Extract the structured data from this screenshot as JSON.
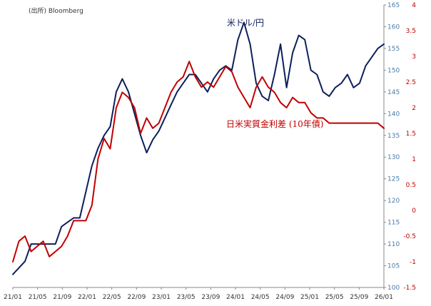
{
  "chart_data": {
    "type": "line",
    "source": "(出所) Bloomberg",
    "xlabel": "",
    "x_ticks": [
      "21/01",
      "21/05",
      "21/09",
      "22/01",
      "22/05",
      "22/09",
      "23/01",
      "23/05",
      "23/09",
      "24/01",
      "24/05",
      "24/09",
      "25/01",
      "25/05",
      "25/09",
      "26/01"
    ],
    "x_range": [
      0,
      61
    ],
    "y_left": {
      "range": [
        100,
        165
      ],
      "ticks": [
        100,
        105,
        110,
        115,
        120,
        125,
        130,
        135,
        140,
        145,
        150,
        155,
        160,
        165
      ],
      "color": "#4a7aa8"
    },
    "y_right": {
      "range": [
        -1.5,
        4
      ],
      "ticks": [
        "-1.5",
        "-1",
        "-0.5",
        "0",
        "0.5",
        "1",
        "1.5",
        "2",
        "2.5",
        "3",
        "3.5",
        "4"
      ],
      "color": "#c00000"
    },
    "grid": false,
    "series": [
      {
        "name": "米ドル/円",
        "axis": "left",
        "color": "#0d1f5c",
        "x": [
          0,
          2,
          3,
          4,
          5,
          6,
          7,
          8,
          9,
          10,
          11,
          12,
          13,
          14,
          15,
          16,
          17,
          18,
          19,
          20,
          21,
          22,
          23,
          24,
          25,
          26,
          27,
          28,
          29,
          30,
          31,
          32,
          33,
          34,
          35,
          36,
          37,
          38,
          39,
          40,
          41,
          42,
          43,
          44,
          45,
          46,
          47,
          48,
          49,
          50,
          51,
          52,
          53,
          54,
          55,
          56,
          57,
          58,
          59,
          60,
          61
        ],
        "values": [
          103.0,
          106.0,
          110.0,
          110.0,
          110.0,
          110.0,
          110.0,
          114.0,
          115.0,
          116.0,
          116.0,
          122.0,
          128.0,
          132.0,
          135.0,
          137.0,
          145.0,
          148.0,
          145.0,
          140.0,
          135.0,
          131.0,
          134.0,
          136.0,
          139.0,
          142.0,
          145.0,
          147.0,
          149.0,
          149.0,
          147.0,
          145.0,
          148.0,
          150.0,
          151.0,
          150.0,
          157.0,
          161.0,
          156.0,
          147.0,
          144.0,
          143.0,
          149.0,
          156.0,
          146.0,
          154.0,
          158.0,
          157.0,
          150.0,
          149.0,
          145.0,
          144.0,
          146.0,
          147.0,
          149.0,
          146.0,
          147.0,
          151.0,
          153.0,
          155.0,
          156.0
        ]
      },
      {
        "name": "日米実質金利差 (10年債)",
        "axis": "right",
        "color": "#c00000",
        "x": [
          0,
          1,
          2,
          3,
          4,
          5,
          6,
          7,
          8,
          9,
          10,
          11,
          12,
          13,
          14,
          15,
          16,
          17,
          18,
          19,
          20,
          21,
          22,
          23,
          24,
          25,
          26,
          27,
          28,
          29,
          30,
          31,
          32,
          33,
          34,
          35,
          36,
          37,
          38,
          39,
          40,
          41,
          42,
          43,
          44,
          45,
          46,
          47,
          48,
          49,
          50,
          51,
          52,
          53,
          54,
          55,
          56,
          57,
          58,
          59,
          60,
          61
        ],
        "values": [
          -1.0,
          -0.6,
          -0.5,
          -0.8,
          -0.7,
          -0.6,
          -0.9,
          -0.8,
          -0.7,
          -0.5,
          -0.2,
          -0.2,
          -0.2,
          0.1,
          1.0,
          1.4,
          1.2,
          2.0,
          2.3,
          2.2,
          2.0,
          1.5,
          1.8,
          1.6,
          1.7,
          2.0,
          2.3,
          2.5,
          2.6,
          2.9,
          2.6,
          2.4,
          2.5,
          2.4,
          2.6,
          2.8,
          2.7,
          2.4,
          2.2,
          2.0,
          2.4,
          2.6,
          2.4,
          2.3,
          2.1,
          2.0,
          2.2,
          2.1,
          2.1,
          1.9,
          1.8,
          1.8,
          1.7,
          1.7,
          1.7,
          1.7,
          1.7,
          1.7,
          1.7,
          1.7,
          1.7,
          1.6
        ]
      }
    ],
    "annotations": [
      {
        "text": "米ドル/円",
        "series": 0
      },
      {
        "text": "日米実質金利差 (10年債)",
        "series": 1
      }
    ]
  }
}
